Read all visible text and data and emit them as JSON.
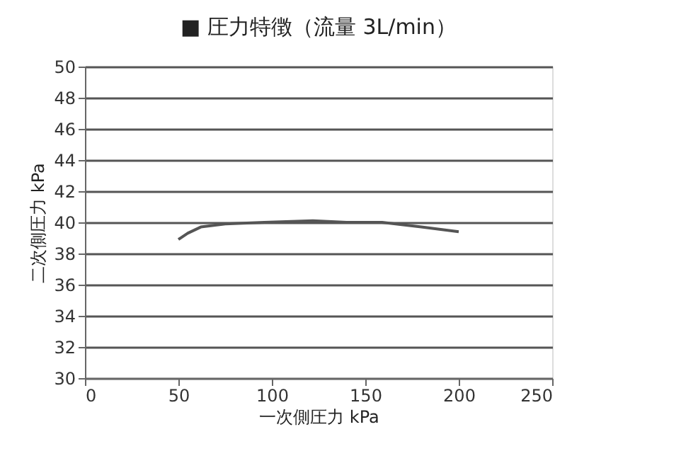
{
  "chart_data": {
    "type": "line",
    "title": "■ 圧力特徴（流量 3L/min）",
    "xlabel": "一次側圧力 kPa",
    "ylabel": "二次側圧力 kPa",
    "x": [
      50,
      55,
      62,
      75,
      96,
      122,
      140,
      159,
      180,
      200
    ],
    "series": [
      {
        "color": "#555555",
        "values": [
          38.9,
          39.3,
          39.7,
          39.9,
          40.0,
          40.1,
          40.0,
          40.0,
          39.7,
          39.4
        ]
      }
    ],
    "xlim": [
      0,
      250
    ],
    "xticks": [
      0,
      50,
      100,
      150,
      200,
      250
    ],
    "ylim": [
      30,
      50
    ],
    "yticks": [
      30,
      32,
      34,
      36,
      38,
      40,
      42,
      44,
      46,
      48,
      50
    ],
    "grid": "y",
    "marker": "none",
    "line_style": "solid"
  }
}
